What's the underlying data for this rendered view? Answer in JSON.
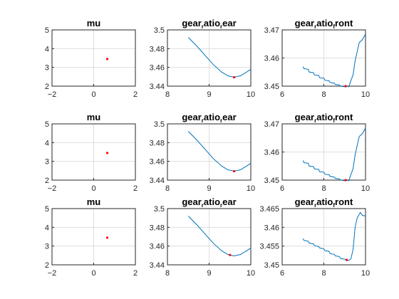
{
  "colors": {
    "line": "#0072BD",
    "marker": "#FF0000",
    "axis": "#262626",
    "grid": "#dedede"
  },
  "chart_data": [
    {
      "type": "scatter",
      "row": 0,
      "col": 0,
      "title": "mu",
      "title_parts": [
        "mu"
      ],
      "xlim": [
        -2,
        2
      ],
      "ylim": [
        2,
        5
      ],
      "xticks": [
        -2,
        0,
        2
      ],
      "yticks": [
        2,
        3,
        4,
        5
      ],
      "grid": true,
      "points": [
        {
          "x": 0.65,
          "y": 3.45
        }
      ]
    },
    {
      "type": "line",
      "row": 0,
      "col": 1,
      "title": "gear_ratio_rear",
      "title_parts": [
        "gear",
        "r",
        "atio",
        "r",
        "ear"
      ],
      "xlim": [
        8,
        10
      ],
      "ylim": [
        3.44,
        3.5
      ],
      "xticks": [
        8,
        9,
        10
      ],
      "yticks": [
        3.44,
        3.46,
        3.48,
        3.5
      ],
      "grid": true,
      "x": [
        8.5,
        8.7,
        8.9,
        9.1,
        9.3,
        9.45,
        9.6,
        9.75,
        9.9,
        10.0
      ],
      "y": [
        3.492,
        3.483,
        3.473,
        3.463,
        3.455,
        3.451,
        3.4495,
        3.451,
        3.455,
        3.458
      ],
      "points": [
        {
          "x": 9.6,
          "y": 3.4495
        }
      ]
    },
    {
      "type": "line",
      "row": 0,
      "col": 2,
      "title": "gear_ratio_front",
      "title_parts": [
        "gear",
        "r",
        "atio",
        "f",
        "ront"
      ],
      "xlim": [
        6,
        10
      ],
      "ylim": [
        3.45,
        3.47
      ],
      "xticks": [
        6,
        8,
        10
      ],
      "yticks": [
        3.45,
        3.46,
        3.47
      ],
      "grid": true,
      "x": [
        7.0,
        7.05,
        7.25,
        7.3,
        7.5,
        7.55,
        7.75,
        7.8,
        8.0,
        8.05,
        8.25,
        8.3,
        8.5,
        8.55,
        8.75,
        8.8,
        9.0,
        9.05,
        9.2,
        9.3,
        9.4,
        9.5,
        9.7,
        9.85,
        10.0
      ],
      "y": [
        3.457,
        3.4562,
        3.456,
        3.455,
        3.4548,
        3.454,
        3.4538,
        3.453,
        3.4528,
        3.4521,
        3.4519,
        3.4513,
        3.4511,
        3.4506,
        3.4504,
        3.45,
        3.4498,
        3.45,
        3.4498,
        3.452,
        3.454,
        3.459,
        3.4655,
        3.4665,
        3.4685
      ],
      "points": [
        {
          "x": 9.05,
          "y": 3.45
        }
      ]
    },
    {
      "type": "scatter",
      "row": 1,
      "col": 0,
      "title": "mu",
      "title_parts": [
        "mu"
      ],
      "xlim": [
        -2,
        2
      ],
      "ylim": [
        2,
        5
      ],
      "xticks": [
        -2,
        0,
        2
      ],
      "yticks": [
        2,
        3,
        4,
        5
      ],
      "grid": true,
      "points": [
        {
          "x": 0.65,
          "y": 3.45
        }
      ]
    },
    {
      "type": "line",
      "row": 1,
      "col": 1,
      "title": "gear_ratio_rear",
      "title_parts": [
        "gear",
        "r",
        "atio",
        "r",
        "ear"
      ],
      "xlim": [
        8,
        10
      ],
      "ylim": [
        3.44,
        3.5
      ],
      "xticks": [
        8,
        9,
        10
      ],
      "yticks": [
        3.44,
        3.46,
        3.48,
        3.5
      ],
      "grid": true,
      "x": [
        8.5,
        8.7,
        8.9,
        9.1,
        9.3,
        9.45,
        9.6,
        9.75,
        9.9,
        10.0
      ],
      "y": [
        3.492,
        3.483,
        3.473,
        3.463,
        3.455,
        3.451,
        3.4495,
        3.451,
        3.455,
        3.458
      ],
      "points": [
        {
          "x": 9.6,
          "y": 3.4495
        }
      ]
    },
    {
      "type": "line",
      "row": 1,
      "col": 2,
      "title": "gear_ratio_front",
      "title_parts": [
        "gear",
        "r",
        "atio",
        "f",
        "ront"
      ],
      "xlim": [
        6,
        10
      ],
      "ylim": [
        3.45,
        3.47
      ],
      "xticks": [
        6,
        8,
        10
      ],
      "yticks": [
        3.45,
        3.46,
        3.47
      ],
      "grid": true,
      "x": [
        7.0,
        7.05,
        7.25,
        7.3,
        7.5,
        7.55,
        7.75,
        7.8,
        8.0,
        8.05,
        8.25,
        8.3,
        8.5,
        8.55,
        8.75,
        8.8,
        9.0,
        9.05,
        9.2,
        9.3,
        9.4,
        9.5,
        9.7,
        9.85,
        10.0
      ],
      "y": [
        3.457,
        3.4562,
        3.456,
        3.455,
        3.4548,
        3.454,
        3.4538,
        3.453,
        3.4528,
        3.4521,
        3.4519,
        3.4513,
        3.4511,
        3.4506,
        3.4504,
        3.45,
        3.4498,
        3.45,
        3.4498,
        3.452,
        3.454,
        3.459,
        3.4655,
        3.4665,
        3.4685
      ],
      "points": [
        {
          "x": 9.05,
          "y": 3.45
        }
      ]
    },
    {
      "type": "scatter",
      "row": 2,
      "col": 0,
      "title": "mu",
      "title_parts": [
        "mu"
      ],
      "xlim": [
        -2,
        2
      ],
      "ylim": [
        2,
        5
      ],
      "xticks": [
        -2,
        0,
        2
      ],
      "yticks": [
        2,
        3,
        4,
        5
      ],
      "grid": true,
      "points": [
        {
          "x": 0.65,
          "y": 3.45
        }
      ]
    },
    {
      "type": "line",
      "row": 2,
      "col": 1,
      "title": "gear_ratio_rear",
      "title_parts": [
        "gear",
        "r",
        "atio",
        "r",
        "ear"
      ],
      "xlim": [
        8,
        10
      ],
      "ylim": [
        3.44,
        3.5
      ],
      "xticks": [
        8,
        9,
        10
      ],
      "yticks": [
        3.44,
        3.46,
        3.48,
        3.5
      ],
      "grid": true,
      "x": [
        8.5,
        8.7,
        8.9,
        9.1,
        9.3,
        9.45,
        9.6,
        9.75,
        9.9,
        10.0
      ],
      "y": [
        3.492,
        3.483,
        3.473,
        3.463,
        3.455,
        3.451,
        3.4495,
        3.451,
        3.455,
        3.458
      ],
      "points": [
        {
          "x": 9.5,
          "y": 3.4505
        }
      ]
    },
    {
      "type": "line",
      "row": 2,
      "col": 2,
      "title": "gear_ratio_front",
      "title_parts": [
        "gear",
        "r",
        "atio",
        "f",
        "ront"
      ],
      "xlim": [
        6,
        10
      ],
      "ylim": [
        3.45,
        3.465
      ],
      "xticks": [
        6,
        8,
        10
      ],
      "yticks": [
        3.45,
        3.455,
        3.46,
        3.465
      ],
      "grid": true,
      "x": [
        7.0,
        7.05,
        7.25,
        7.3,
        7.5,
        7.55,
        7.75,
        7.8,
        8.0,
        8.05,
        8.25,
        8.3,
        8.5,
        8.55,
        8.75,
        8.8,
        9.0,
        9.05,
        9.2,
        9.3,
        9.4,
        9.5,
        9.6,
        9.75,
        9.85,
        10.0
      ],
      "y": [
        3.457,
        3.4565,
        3.4563,
        3.4558,
        3.4556,
        3.4551,
        3.4549,
        3.4545,
        3.4543,
        3.4538,
        3.4536,
        3.453,
        3.4528,
        3.4524,
        3.4522,
        3.4517,
        3.4515,
        3.4513,
        3.4512,
        3.4516,
        3.454,
        3.46,
        3.4625,
        3.464,
        3.4632,
        3.463
      ],
      "points": [
        {
          "x": 9.1,
          "y": 3.4513
        }
      ]
    }
  ]
}
